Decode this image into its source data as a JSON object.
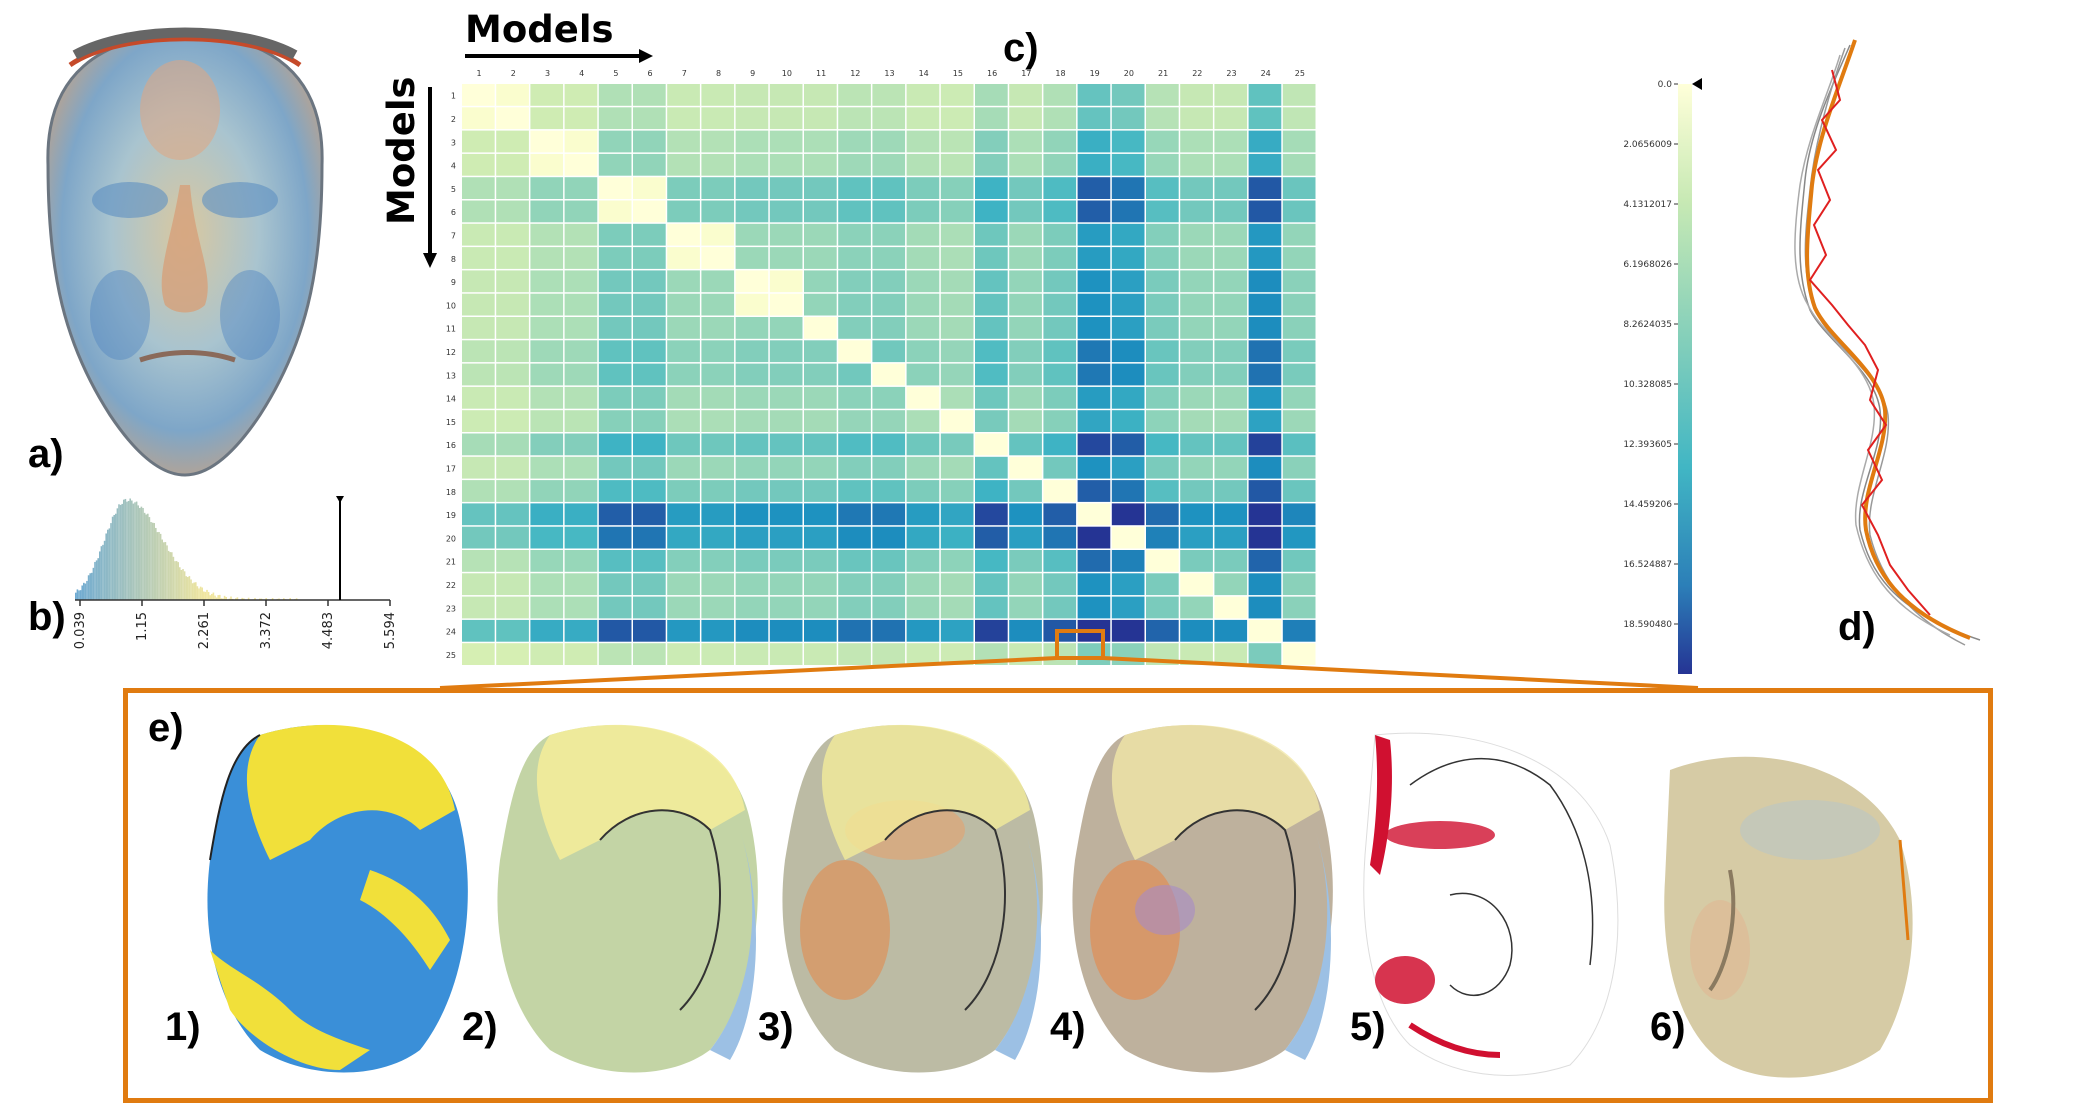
{
  "labels": {
    "a": "a)",
    "b": "b)",
    "c": "c)",
    "d": "d)",
    "e": "e)",
    "models_x": "Models",
    "models_y": "Models",
    "sub": [
      "1)",
      "2)",
      "3)",
      "4)",
      "5)",
      "6)"
    ]
  },
  "histogram": {
    "ticks": [
      "0.039",
      "1.15",
      "2.261",
      "3.372",
      "4.483",
      "5.594"
    ]
  },
  "matrix": {
    "size": 25,
    "row_labels": [
      "1",
      "2",
      "3",
      "4",
      "5",
      "6",
      "7",
      "8",
      "9",
      "10",
      "11",
      "12",
      "13",
      "14",
      "15",
      "16",
      "17",
      "18",
      "19",
      "20",
      "21",
      "22",
      "23",
      "24",
      "25"
    ],
    "col_labels": [
      "1",
      "2",
      "3",
      "4",
      "5",
      "6",
      "7",
      "8",
      "9",
      "10",
      "11",
      "12",
      "13",
      "14",
      "15",
      "16",
      "17",
      "18",
      "19",
      "20",
      "21",
      "22",
      "23",
      "24",
      "25"
    ],
    "colorbar_ticks": [
      "0.0",
      "2.0656009",
      "4.1312017",
      "6.1968026",
      "8.2624035",
      "10.328085",
      "12.393605",
      "14.459206",
      "16.524887",
      "18.590480"
    ]
  },
  "colors": {
    "accent_orange": "#e07b10",
    "yellow": "#f1e03a",
    "blue": "#3a8fd8",
    "red": "#d01030"
  }
}
